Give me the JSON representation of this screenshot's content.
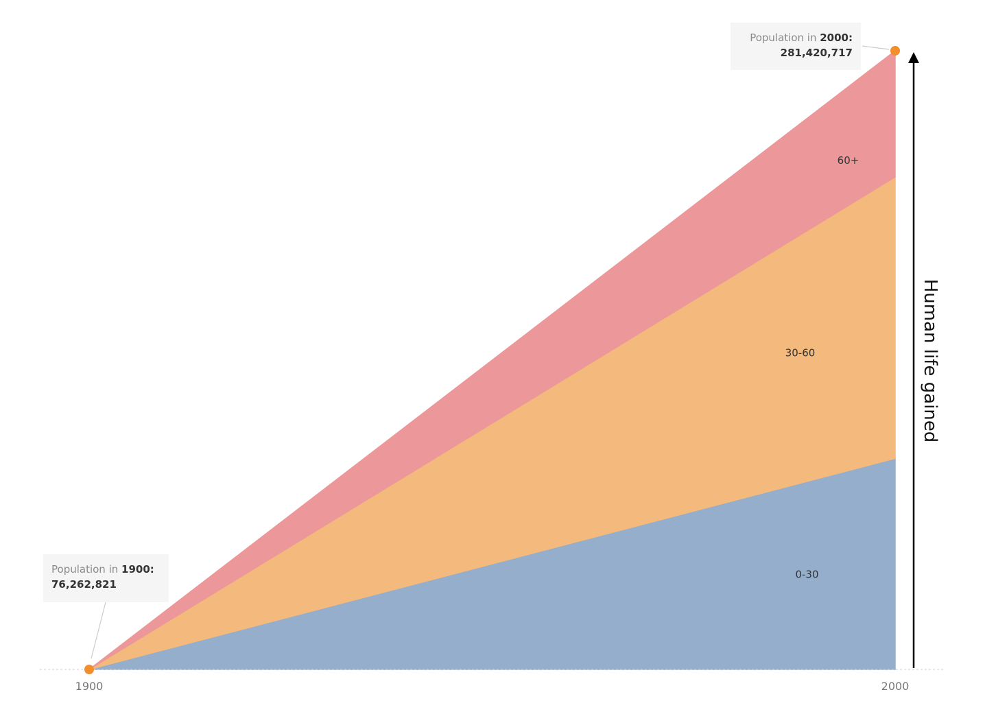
{
  "chart_data": {
    "type": "area",
    "stacked": true,
    "x": [
      1900,
      2000
    ],
    "x_tick_labels": [
      "1900",
      "2000"
    ],
    "series": [
      {
        "name": "0-30",
        "values": [
          0,
          96000000
        ],
        "color": "#94aecb"
      },
      {
        "name": "30-60",
        "values": [
          0,
          128000000
        ],
        "color": "#f4b97c"
      },
      {
        "name": "60+",
        "values": [
          0,
          57420717
        ],
        "color": "#ec9799"
      }
    ],
    "ylim": [
      0,
      281420717
    ],
    "xlim": [
      1900,
      2000
    ],
    "ylabel": "Human life gained",
    "grid": false,
    "legend": "inline labels at right",
    "marker_color": "#f28e2b",
    "annotations": [
      {
        "lead": "Population in",
        "year": "1900:",
        "value": "76,262,821",
        "x": 1900,
        "y": 0
      },
      {
        "lead": "Population in",
        "year": "2000:",
        "value": "281,420,717",
        "x": 2000,
        "y": 281420717
      }
    ]
  }
}
